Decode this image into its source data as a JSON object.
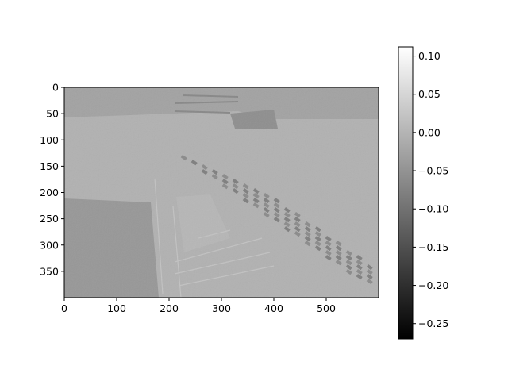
{
  "chart_data": {
    "type": "heatmap",
    "title": "",
    "xlabel": "",
    "ylabel": "",
    "colormap": "gray",
    "image": {
      "width": 600,
      "height": 400,
      "description": "grayscale residual/difference image of stadium seating rows and railings on a mid-gray background",
      "background_value": -0.005
    },
    "x_axis": {
      "ticks": [
        0,
        100,
        200,
        300,
        400,
        500
      ],
      "range": [
        0,
        600
      ]
    },
    "y_axis": {
      "ticks": [
        0,
        50,
        100,
        150,
        200,
        250,
        300,
        350
      ],
      "range": [
        0,
        400
      ],
      "inverted": true
    },
    "colorbar": {
      "min": -0.27,
      "max": 0.112,
      "ticks": [
        0.1,
        0.05,
        0.0,
        -0.05,
        -0.1,
        -0.15,
        -0.2,
        -0.25
      ],
      "tick_labels": [
        "0.10",
        "0.05",
        "0.00",
        "−0.05",
        "−0.10",
        "−0.15",
        "−0.20",
        "−0.25"
      ]
    }
  }
}
